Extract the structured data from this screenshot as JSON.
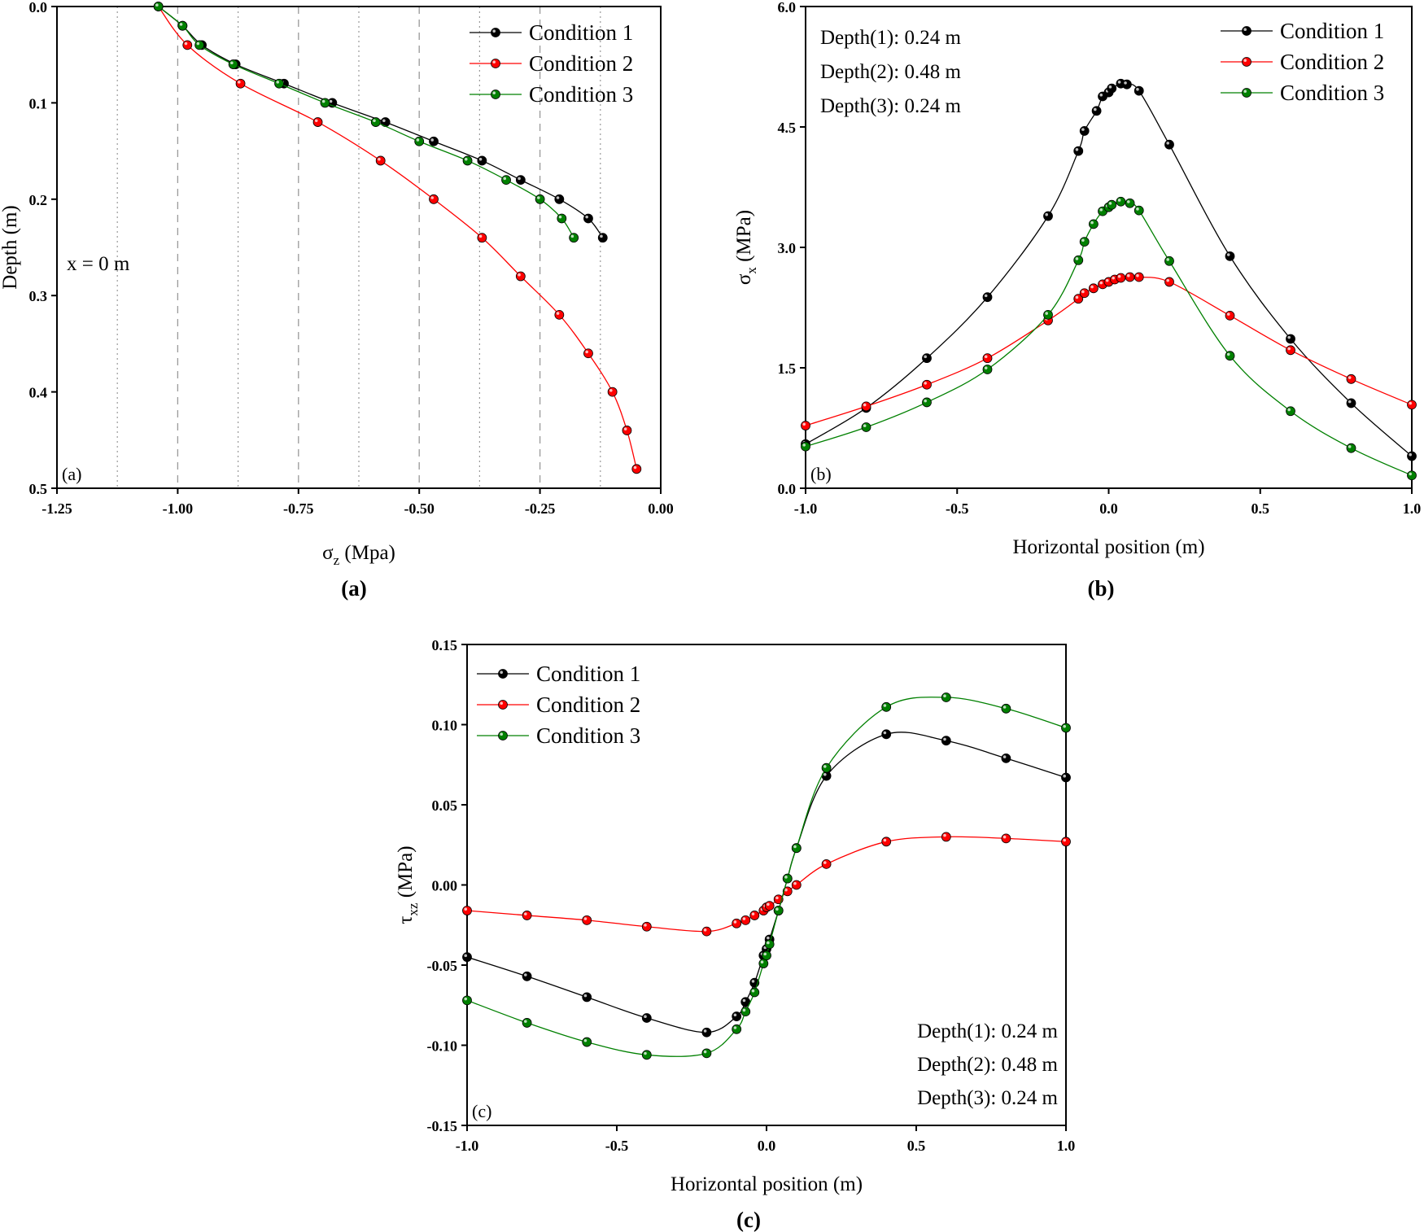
{
  "colors": {
    "condition_1": "#000000",
    "condition_2": "#ff0000",
    "condition_3": "#008000",
    "grid": "#999999"
  },
  "chart_data": [
    {
      "id": "a",
      "type": "line",
      "orientation": "depth-profile",
      "caption": "(a)",
      "panel_tag": "(a)",
      "xlabel_main": "σ",
      "xlabel_sub": "z",
      "xlabel_rest": " (Mpa)",
      "ylabel": "Depth (m)",
      "xlim": [
        -1.25,
        0.0
      ],
      "ylim": [
        0.0,
        0.5
      ],
      "y_inverted": true,
      "xticks": [
        -1.25,
        -1.0,
        -0.75,
        -0.5,
        -0.25,
        0.0
      ],
      "xtick_labels": [
        "-1.25",
        "-1.00",
        "-0.75",
        "-0.50",
        "-0.25",
        "0.00"
      ],
      "yticks": [
        0.0,
        0.1,
        0.2,
        0.3,
        0.4,
        0.5
      ],
      "ytick_labels": [
        "0.0",
        "0.1",
        "0.2",
        "0.3",
        "0.4",
        "0.5"
      ],
      "grid": {
        "dashed_x": [
          -1.0,
          -0.75,
          -0.5,
          -0.25
        ],
        "dotted_x": [
          -1.125,
          -0.875,
          -0.625,
          -0.375,
          -0.125
        ]
      },
      "annotations": [
        {
          "text": "x = 0 m"
        }
      ],
      "legend_position": "top-right",
      "series": [
        {
          "name": "Condition 1",
          "color_key": "condition_1",
          "points": [
            [
              -1.04,
              0.0
            ],
            [
              -0.99,
              0.02
            ],
            [
              -0.95,
              0.04
            ],
            [
              -0.88,
              0.06
            ],
            [
              -0.78,
              0.08
            ],
            [
              -0.68,
              0.1
            ],
            [
              -0.57,
              0.12
            ],
            [
              -0.47,
              0.14
            ],
            [
              -0.37,
              0.16
            ],
            [
              -0.29,
              0.18
            ],
            [
              -0.21,
              0.2
            ],
            [
              -0.15,
              0.22
            ],
            [
              -0.12,
              0.24
            ]
          ]
        },
        {
          "name": "Condition 2",
          "color_key": "condition_2",
          "points": [
            [
              -1.04,
              0.0
            ],
            [
              -0.98,
              0.04
            ],
            [
              -0.87,
              0.08
            ],
            [
              -0.71,
              0.12
            ],
            [
              -0.58,
              0.16
            ],
            [
              -0.47,
              0.2
            ],
            [
              -0.37,
              0.24
            ],
            [
              -0.29,
              0.28
            ],
            [
              -0.21,
              0.32
            ],
            [
              -0.15,
              0.36
            ],
            [
              -0.1,
              0.4
            ],
            [
              -0.07,
              0.44
            ],
            [
              -0.05,
              0.48
            ]
          ]
        },
        {
          "name": "Condition 3",
          "color_key": "condition_3",
          "points": [
            [
              -1.04,
              0.0
            ],
            [
              -0.99,
              0.02
            ],
            [
              -0.955,
              0.04
            ],
            [
              -0.885,
              0.06
            ],
            [
              -0.79,
              0.08
            ],
            [
              -0.695,
              0.1
            ],
            [
              -0.59,
              0.12
            ],
            [
              -0.5,
              0.14
            ],
            [
              -0.4,
              0.16
            ],
            [
              -0.32,
              0.18
            ],
            [
              -0.25,
              0.2
            ],
            [
              -0.205,
              0.22
            ],
            [
              -0.18,
              0.24
            ]
          ]
        }
      ]
    },
    {
      "id": "b",
      "type": "line",
      "caption": "(b)",
      "panel_tag": "(b)",
      "xlabel": "Horizontal position (m)",
      "ylabel_main": "σ",
      "ylabel_sub": "x",
      "ylabel_rest": " (MPa)",
      "xlim": [
        -1.0,
        1.0
      ],
      "ylim": [
        0.0,
        6.0
      ],
      "xticks": [
        -1.0,
        -0.5,
        0.0,
        0.5,
        1.0
      ],
      "xtick_labels": [
        "-1.0",
        "-0.5",
        "0.0",
        "0.5",
        "1.0"
      ],
      "yticks": [
        0.0,
        1.5,
        3.0,
        4.5,
        6.0
      ],
      "ytick_labels": [
        "0.0",
        "1.5",
        "3.0",
        "4.5",
        "6.0"
      ],
      "annotations": [
        {
          "text": "Depth(1): 0.24 m"
        },
        {
          "text": "Depth(2): 0.48 m"
        },
        {
          "text": "Depth(3): 0.24 m"
        }
      ],
      "legend_position": "top-right",
      "series": [
        {
          "name": "Condition 1",
          "color_key": "condition_1",
          "points": [
            [
              -1.0,
              0.55
            ],
            [
              -0.8,
              1.0
            ],
            [
              -0.6,
              1.62
            ],
            [
              -0.4,
              2.38
            ],
            [
              -0.2,
              3.39
            ],
            [
              -0.1,
              4.2
            ],
            [
              -0.08,
              4.45
            ],
            [
              -0.04,
              4.7
            ],
            [
              -0.02,
              4.88
            ],
            [
              0.0,
              4.93
            ],
            [
              0.01,
              4.98
            ],
            [
              0.04,
              5.04
            ],
            [
              0.06,
              5.03
            ],
            [
              0.1,
              4.95
            ],
            [
              0.2,
              4.28
            ],
            [
              0.4,
              2.89
            ],
            [
              0.6,
              1.86
            ],
            [
              0.8,
              1.06
            ],
            [
              1.0,
              0.4
            ]
          ]
        },
        {
          "name": "Condition 2",
          "color_key": "condition_2",
          "points": [
            [
              -1.0,
              0.78
            ],
            [
              -0.8,
              1.02
            ],
            [
              -0.6,
              1.29
            ],
            [
              -0.4,
              1.62
            ],
            [
              -0.2,
              2.09
            ],
            [
              -0.1,
              2.36
            ],
            [
              -0.08,
              2.43
            ],
            [
              -0.05,
              2.49
            ],
            [
              -0.02,
              2.54
            ],
            [
              0.0,
              2.57
            ],
            [
              0.02,
              2.6
            ],
            [
              0.04,
              2.62
            ],
            [
              0.07,
              2.63
            ],
            [
              0.1,
              2.63
            ],
            [
              0.2,
              2.57
            ],
            [
              0.4,
              2.15
            ],
            [
              0.6,
              1.72
            ],
            [
              0.8,
              1.36
            ],
            [
              1.0,
              1.04
            ]
          ]
        },
        {
          "name": "Condition 3",
          "color_key": "condition_3",
          "points": [
            [
              -1.0,
              0.52
            ],
            [
              -0.8,
              0.76
            ],
            [
              -0.6,
              1.07
            ],
            [
              -0.4,
              1.48
            ],
            [
              -0.2,
              2.16
            ],
            [
              -0.1,
              2.84
            ],
            [
              -0.08,
              3.07
            ],
            [
              -0.05,
              3.29
            ],
            [
              -0.02,
              3.45
            ],
            [
              0.0,
              3.5
            ],
            [
              0.01,
              3.53
            ],
            [
              0.04,
              3.57
            ],
            [
              0.07,
              3.55
            ],
            [
              0.1,
              3.46
            ],
            [
              0.2,
              2.83
            ],
            [
              0.4,
              1.65
            ],
            [
              0.6,
              0.96
            ],
            [
              0.8,
              0.5
            ],
            [
              1.0,
              0.16
            ]
          ]
        }
      ]
    },
    {
      "id": "c",
      "type": "line",
      "caption": "(c)",
      "panel_tag": "(c)",
      "xlabel": "Horizontal position (m)",
      "ylabel_main": "τ",
      "ylabel_sub": "xz",
      "ylabel_rest": " (MPa)",
      "xlim": [
        -1.0,
        1.0
      ],
      "ylim": [
        -0.15,
        0.15
      ],
      "xticks": [
        -1.0,
        -0.5,
        0.0,
        0.5,
        1.0
      ],
      "xtick_labels": [
        "-1.0",
        "-0.5",
        "0.0",
        "0.5",
        "1.0"
      ],
      "yticks": [
        -0.15,
        -0.1,
        -0.05,
        0.0,
        0.05,
        0.1,
        0.15
      ],
      "ytick_labels": [
        "-0.15",
        "-0.10",
        "-0.05",
        "0.00",
        "0.05",
        "0.10",
        "0.15"
      ],
      "annotations": [
        {
          "text": "Depth(1): 0.24 m"
        },
        {
          "text": "Depth(2): 0.48 m"
        },
        {
          "text": "Depth(3): 0.24 m"
        }
      ],
      "legend_position": "top-left",
      "series": [
        {
          "name": "Condition 1",
          "color_key": "condition_1",
          "points": [
            [
              -1.0,
              -0.045
            ],
            [
              -0.8,
              -0.057
            ],
            [
              -0.6,
              -0.07
            ],
            [
              -0.4,
              -0.083
            ],
            [
              -0.2,
              -0.092
            ],
            [
              -0.1,
              -0.082
            ],
            [
              -0.07,
              -0.073
            ],
            [
              -0.04,
              -0.061
            ],
            [
              -0.01,
              -0.044
            ],
            [
              0.0,
              -0.04
            ],
            [
              0.01,
              -0.034
            ],
            [
              0.04,
              -0.016
            ],
            [
              0.07,
              0.004
            ],
            [
              0.1,
              0.023
            ],
            [
              0.2,
              0.068
            ],
            [
              0.4,
              0.094
            ],
            [
              0.6,
              0.09
            ],
            [
              0.8,
              0.079
            ],
            [
              1.0,
              0.067
            ]
          ]
        },
        {
          "name": "Condition 2",
          "color_key": "condition_2",
          "points": [
            [
              -1.0,
              -0.016
            ],
            [
              -0.8,
              -0.019
            ],
            [
              -0.6,
              -0.022
            ],
            [
              -0.4,
              -0.026
            ],
            [
              -0.2,
              -0.029
            ],
            [
              -0.1,
              -0.024
            ],
            [
              -0.07,
              -0.022
            ],
            [
              -0.04,
              -0.019
            ],
            [
              -0.01,
              -0.016
            ],
            [
              0.0,
              -0.014
            ],
            [
              0.01,
              -0.013
            ],
            [
              0.04,
              -0.009
            ],
            [
              0.07,
              -0.004
            ],
            [
              0.1,
              0.0
            ],
            [
              0.2,
              0.013
            ],
            [
              0.4,
              0.027
            ],
            [
              0.6,
              0.03
            ],
            [
              0.8,
              0.029
            ],
            [
              1.0,
              0.027
            ]
          ]
        },
        {
          "name": "Condition 3",
          "color_key": "condition_3",
          "points": [
            [
              -1.0,
              -0.072
            ],
            [
              -0.8,
              -0.086
            ],
            [
              -0.6,
              -0.098
            ],
            [
              -0.4,
              -0.106
            ],
            [
              -0.2,
              -0.105
            ],
            [
              -0.1,
              -0.09
            ],
            [
              -0.07,
              -0.079
            ],
            [
              -0.04,
              -0.067
            ],
            [
              -0.01,
              -0.049
            ],
            [
              0.0,
              -0.044
            ],
            [
              0.01,
              -0.037
            ],
            [
              0.04,
              -0.016
            ],
            [
              0.07,
              0.004
            ],
            [
              0.1,
              0.023
            ],
            [
              0.2,
              0.073
            ],
            [
              0.4,
              0.111
            ],
            [
              0.6,
              0.117
            ],
            [
              0.8,
              0.11
            ],
            [
              1.0,
              0.098
            ]
          ]
        }
      ]
    }
  ]
}
